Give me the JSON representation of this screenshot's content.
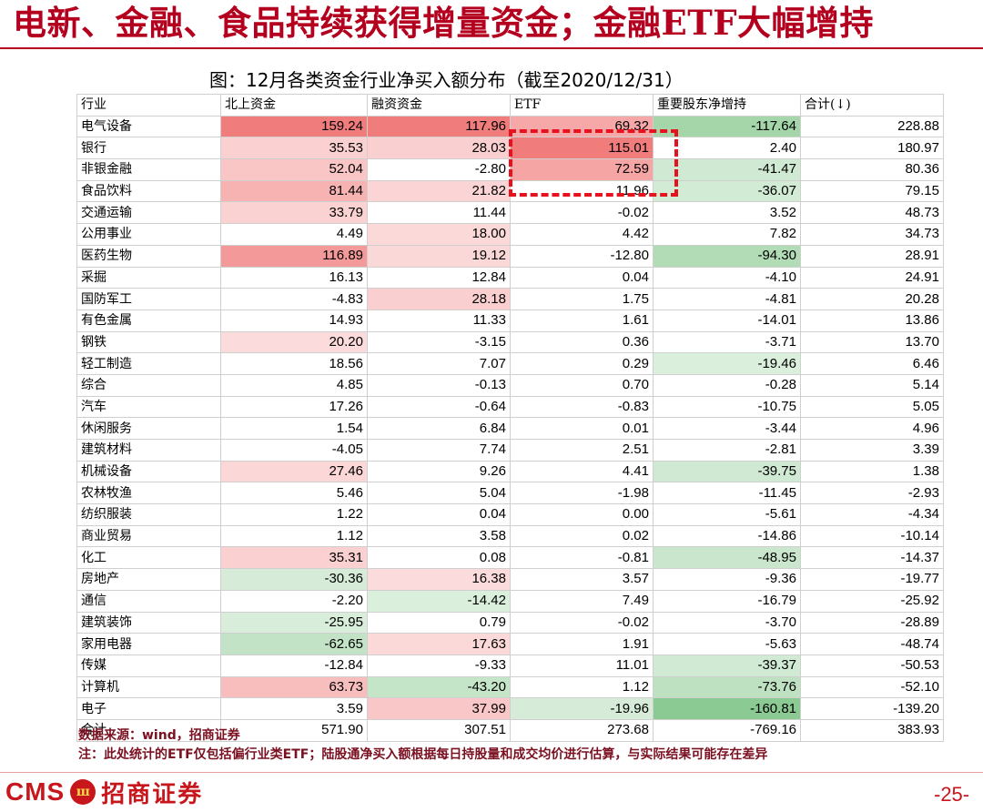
{
  "headline": "电新、金融、食品持续获得增量资金；金融ETF大幅增持",
  "caption": "图：12月各类资金行业净买入额分布（截至2020/12/31）",
  "columns": [
    "行业",
    "北上资金",
    "融资资金",
    "ETF",
    "重要股东净增持",
    "合计(↓)"
  ],
  "rows": [
    {
      "name": "电气设备",
      "values": [
        "159.24",
        "117.96",
        "69.32",
        "-117.64",
        "228.88"
      ]
    },
    {
      "name": "银行",
      "values": [
        "35.53",
        "28.03",
        "115.01",
        "2.40",
        "180.97"
      ]
    },
    {
      "name": "非银金融",
      "values": [
        "52.04",
        "-2.80",
        "72.59",
        "-41.47",
        "80.36"
      ]
    },
    {
      "name": "食品饮料",
      "values": [
        "81.44",
        "21.82",
        "11.96",
        "-36.07",
        "79.15"
      ]
    },
    {
      "name": "交通运输",
      "values": [
        "33.79",
        "11.44",
        "-0.02",
        "3.52",
        "48.73"
      ]
    },
    {
      "name": "公用事业",
      "values": [
        "4.49",
        "18.00",
        "4.42",
        "7.82",
        "34.73"
      ]
    },
    {
      "name": "医药生物",
      "values": [
        "116.89",
        "19.12",
        "-12.80",
        "-94.30",
        "28.91"
      ]
    },
    {
      "name": "采掘",
      "values": [
        "16.13",
        "12.84",
        "0.04",
        "-4.10",
        "24.91"
      ]
    },
    {
      "name": "国防军工",
      "values": [
        "-4.83",
        "28.18",
        "1.75",
        "-4.81",
        "20.28"
      ]
    },
    {
      "name": "有色金属",
      "values": [
        "14.93",
        "11.33",
        "1.61",
        "-14.01",
        "13.86"
      ]
    },
    {
      "name": "钢铁",
      "values": [
        "20.20",
        "-3.15",
        "0.36",
        "-3.71",
        "13.70"
      ]
    },
    {
      "name": "轻工制造",
      "values": [
        "18.56",
        "7.07",
        "0.29",
        "-19.46",
        "6.46"
      ]
    },
    {
      "name": "综合",
      "values": [
        "4.85",
        "-0.13",
        "0.70",
        "-0.28",
        "5.14"
      ]
    },
    {
      "name": "汽车",
      "values": [
        "17.26",
        "-0.64",
        "-0.83",
        "-10.75",
        "5.05"
      ]
    },
    {
      "name": "休闲服务",
      "values": [
        "1.54",
        "6.84",
        "0.01",
        "-3.44",
        "4.96"
      ]
    },
    {
      "name": "建筑材料",
      "values": [
        "-4.05",
        "7.74",
        "2.51",
        "-2.81",
        "3.39"
      ]
    },
    {
      "name": "机械设备",
      "values": [
        "27.46",
        "9.26",
        "4.41",
        "-39.75",
        "1.38"
      ]
    },
    {
      "name": "农林牧渔",
      "values": [
        "5.46",
        "5.04",
        "-1.98",
        "-11.45",
        "-2.93"
      ]
    },
    {
      "name": "纺织服装",
      "values": [
        "1.22",
        "0.04",
        "0.00",
        "-5.61",
        "-4.34"
      ]
    },
    {
      "name": "商业贸易",
      "values": [
        "1.12",
        "3.58",
        "0.02",
        "-14.86",
        "-10.14"
      ]
    },
    {
      "name": "化工",
      "values": [
        "35.31",
        "0.08",
        "-0.81",
        "-48.95",
        "-14.37"
      ]
    },
    {
      "name": "房地产",
      "values": [
        "-30.36",
        "16.38",
        "3.57",
        "-9.36",
        "-19.77"
      ]
    },
    {
      "name": "通信",
      "values": [
        "-2.20",
        "-14.42",
        "7.49",
        "-16.79",
        "-25.92"
      ]
    },
    {
      "name": "建筑装饰",
      "values": [
        "-25.95",
        "0.79",
        "-0.02",
        "-3.70",
        "-28.89"
      ]
    },
    {
      "name": "家用电器",
      "values": [
        "-62.65",
        "17.63",
        "1.91",
        "-5.63",
        "-48.74"
      ]
    },
    {
      "name": "传媒",
      "values": [
        "-12.84",
        "-9.33",
        "11.01",
        "-39.37",
        "-50.53"
      ]
    },
    {
      "name": "计算机",
      "values": [
        "63.73",
        "-43.20",
        "1.12",
        "-73.76",
        "-52.10"
      ]
    },
    {
      "name": "电子",
      "values": [
        "3.59",
        "37.99",
        "-19.96",
        "-160.81",
        "-139.20"
      ]
    }
  ],
  "total": {
    "name": "合计",
    "values": [
      "571.90",
      "307.51",
      "273.68",
      "-769.16",
      "383.93"
    ]
  },
  "source": "数据来源：wind，招商证券",
  "note": "注：此处统计的ETF仅包括偏行业类ETF；陆股通净买入额根据每日持股量和成交均价进行估算，与实际结果可能存在差异",
  "logo_en": "CMS",
  "logo_cn": "招商证券",
  "page": "-25-",
  "colors": {
    "accent": "#b4001e",
    "positive": "#f08080",
    "negative": "#2e9e3e"
  }
}
